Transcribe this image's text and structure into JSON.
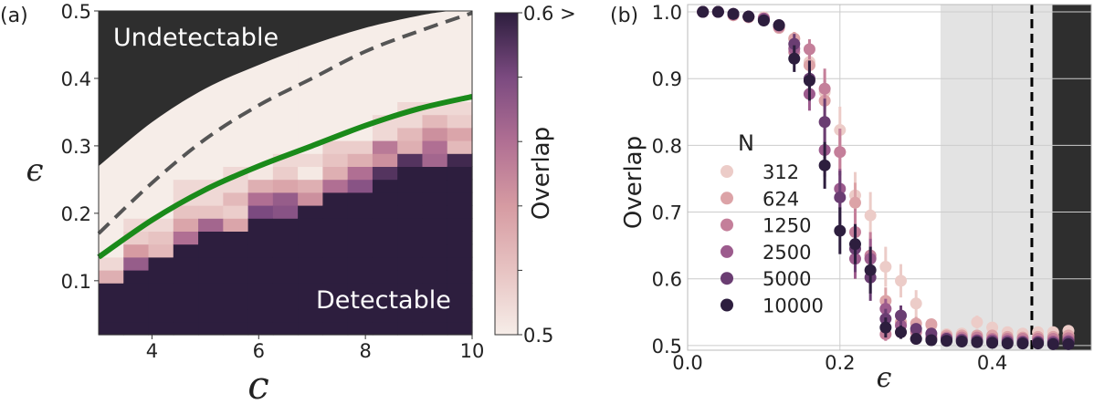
{
  "chart_data": [
    {
      "panel_label": "(a)",
      "type": "heatmap",
      "xlabel": "c",
      "ylabel": "ϵ",
      "xlim": [
        3,
        10
      ],
      "ylim": [
        0.02,
        0.5
      ],
      "x_ticks": [
        "4",
        "6",
        "8",
        "10"
      ],
      "x_tick_values": [
        4,
        6,
        8,
        10
      ],
      "y_ticks": [
        "0.1",
        "0.2",
        "0.3",
        "0.4",
        "0.5"
      ],
      "y_tick_values": [
        0.1,
        0.2,
        0.3,
        0.4,
        0.5
      ],
      "grid_columns": 15,
      "grid_rows": 25,
      "cells": [
        {
          "dark_rows": 4,
          "values": [
            0.53,
            0.51
          ]
        },
        {
          "dark_rows": 5,
          "values": [
            0.57,
            0.54,
            0.515,
            0.51
          ]
        },
        {
          "dark_rows": 6,
          "values": [
            0.525,
            0.52,
            0.51
          ]
        },
        {
          "dark_rows": 7,
          "values": [
            0.56,
            0.535,
            0.52,
            0.51,
            0.51
          ]
        },
        {
          "dark_rows": 8,
          "values": [
            0.565,
            0.52,
            0.51,
            0.51
          ]
        },
        {
          "dark_rows": 8,
          "values": [
            0.535,
            0.515,
            0.525,
            0.51,
            0.51
          ]
        },
        {
          "dark_rows": 9,
          "values": [
            0.58,
            0.56,
            0.53,
            0.503
          ]
        },
        {
          "dark_rows": 9,
          "values": [
            0.575,
            0.57,
            0.535,
            0.515,
            0.51
          ]
        },
        {
          "dark_rows": 10,
          "values": [
            0.545,
            0.53,
            0.502,
            0.51
          ]
        },
        {
          "dark_rows": 11,
          "values": [
            0.56,
            0.53,
            0.52,
            0.515
          ]
        },
        {
          "dark_rows": 11,
          "values": [
            0.575,
            0.56,
            0.53,
            0.515
          ]
        },
        {
          "dark_rows": 12,
          "values": [
            0.59,
            0.545,
            0.555,
            0.51,
            0.51
          ]
        },
        {
          "dark_rows": 13,
          "values": [
            0.59,
            0.53,
            0.525,
            0.51,
            0.51
          ]
        },
        {
          "dark_rows": 13,
          "values": [
            0.565,
            0.56,
            0.545,
            0.525,
            0.51
          ]
        },
        {
          "dark_rows": 13,
          "values": [
            0.595,
            0.525,
            0.535,
            0.515,
            0.51
          ]
        }
      ],
      "undetectable_boundary": {
        "c": [
          3,
          4,
          5,
          6,
          7,
          8,
          9,
          9.6,
          10
        ],
        "eps": [
          0.27,
          0.335,
          0.385,
          0.42,
          0.45,
          0.475,
          0.493,
          0.5,
          0.5
        ]
      },
      "dashed_curve": {
        "c": [
          3,
          4,
          5,
          6,
          7,
          8,
          9,
          10
        ],
        "eps": [
          0.17,
          0.245,
          0.31,
          0.36,
          0.4,
          0.44,
          0.47,
          0.497
        ]
      },
      "green_curve": {
        "c": [
          3,
          4,
          5,
          6,
          7,
          8,
          9,
          10
        ],
        "eps": [
          0.135,
          0.19,
          0.235,
          0.27,
          0.3,
          0.33,
          0.355,
          0.373
        ]
      },
      "region_labels": {
        "undetectable": "Undetectable",
        "detectable": "Detectable"
      },
      "colorbar": {
        "label": "Overlap",
        "min_label": "0.5",
        "max_label": "0.6 >",
        "range": [
          0.5,
          0.6
        ],
        "colors": [
          "#f6ede8",
          "#e7c3c2",
          "#d69ba2",
          "#b06f93",
          "#7b4a80",
          "#2d1e3e"
        ]
      },
      "colors": {
        "undetectable": "#2e2e2e",
        "detectable": "#2d1e3e",
        "green_curve": "#1a8a1a",
        "dashed_curve": "#555555"
      }
    },
    {
      "panel_label": "(b)",
      "type": "scatter",
      "xlabel": "ϵ",
      "ylabel": "Overlap",
      "xlim": [
        0,
        0.53
      ],
      "ylim": [
        0.493,
        1.011
      ],
      "grid": true,
      "x_ticks": [
        "0.0",
        "0.2",
        "0.4"
      ],
      "x_tick_values": [
        0.0,
        0.2,
        0.4
      ],
      "y_ticks": [
        "0.5",
        "0.6",
        "0.7",
        "0.8",
        "0.9",
        "1.0"
      ],
      "y_tick_values": [
        0.5,
        0.6,
        0.7,
        0.8,
        0.9,
        1.0
      ],
      "shaded_region": [
        0.332,
        0.479
      ],
      "dark_region": [
        0.479,
        0.53
      ],
      "dashed_line_x": 0.452,
      "legend": {
        "title": "N",
        "placement": "center-left"
      },
      "x": [
        0.02,
        0.04,
        0.06,
        0.08,
        0.1,
        0.12,
        0.14,
        0.16,
        0.18,
        0.2,
        0.22,
        0.24,
        0.26,
        0.28,
        0.3,
        0.32,
        0.34,
        0.36,
        0.38,
        0.4,
        0.42,
        0.44,
        0.46,
        0.48,
        0.5
      ],
      "series": [
        {
          "name": "312",
          "color": "#ecccc8",
          "values": [
            1,
            1,
            0.995,
            0.992,
            0.992,
            0.978,
            0.96,
            0.925,
            0.88,
            0.823,
            0.725,
            0.695,
            0.618,
            0.597,
            0.563,
            0.53,
            0.517,
            0.518,
            0.535,
            0.527,
            0.52,
            0.518,
            0.52,
            0.52,
            0.522
          ],
          "err": [
            0,
            0,
            0,
            0,
            0.003,
            0.005,
            0.01,
            0.02,
            0.03,
            0.035,
            0.035,
            0.035,
            0.03,
            0.025,
            0.02,
            0.01,
            0.005,
            0.005,
            0.01,
            0.008,
            0.006,
            0.005,
            0.005,
            0.005,
            0.004
          ]
        },
        {
          "name": "624",
          "color": "#dca3a7",
          "values": [
            1,
            1,
            0.995,
            0.992,
            0.99,
            0.976,
            0.96,
            0.92,
            0.867,
            0.79,
            0.714,
            0.632,
            0.567,
            0.535,
            0.533,
            0.532,
            0.515,
            0.515,
            0.515,
            0.515,
            0.513,
            0.512,
            0.513,
            0.513,
            0.515
          ],
          "err": [
            0,
            0,
            0,
            0,
            0.003,
            0.005,
            0.01,
            0.02,
            0.03,
            0.035,
            0.03,
            0.03,
            0.02,
            0.015,
            0.01,
            0.008,
            0.005,
            0.004,
            0.004,
            0.004,
            0.004,
            0.003,
            0.003,
            0.003,
            0.003
          ]
        },
        {
          "name": "1250",
          "color": "#c47f9a",
          "values": [
            1,
            1,
            0.996,
            0.993,
            0.99,
            0.978,
            0.94,
            0.944,
            0.885,
            0.79,
            0.67,
            0.635,
            0.517,
            0.52,
            0.52,
            0.513,
            0.512,
            0.512,
            0.512,
            0.51,
            0.51,
            0.51,
            0.51,
            0.51,
            0.511
          ],
          "err": [
            0,
            0,
            0,
            0,
            0.003,
            0.005,
            0.01,
            0.015,
            0.03,
            0.035,
            0.035,
            0.035,
            0.01,
            0.01,
            0.008,
            0.005,
            0.004,
            0.003,
            0.003,
            0.003,
            0.003,
            0.003,
            0.003,
            0.003,
            0.003
          ]
        },
        {
          "name": "2500",
          "color": "#9c5b8d",
          "values": [
            1,
            1,
            0.997,
            0.993,
            0.99,
            0.98,
            0.945,
            0.877,
            0.793,
            0.735,
            0.63,
            0.63,
            0.555,
            0.53,
            0.51,
            0.51,
            0.51,
            0.509,
            0.508,
            0.508,
            0.507,
            0.506,
            0.506,
            0.506,
            0.507
          ],
          "err": [
            0,
            0,
            0,
            0,
            0.003,
            0.005,
            0.015,
            0.025,
            0.04,
            0.03,
            0.03,
            0.03,
            0.015,
            0.01,
            0.005,
            0.004,
            0.003,
            0.003,
            0.003,
            0.003,
            0.003,
            0.003,
            0.003,
            0.003,
            0.003
          ]
        },
        {
          "name": "5000",
          "color": "#6a3d72",
          "values": [
            1,
            1,
            0.997,
            0.993,
            0.988,
            0.98,
            0.952,
            0.9,
            0.835,
            0.722,
            0.645,
            0.602,
            0.54,
            0.545,
            0.525,
            0.518,
            0.51,
            0.508,
            0.507,
            0.506,
            0.505,
            0.505,
            0.505,
            0.504,
            0.505
          ],
          "err": [
            0,
            0,
            0,
            0,
            0.003,
            0.005,
            0.015,
            0.025,
            0.035,
            0.04,
            0.035,
            0.035,
            0.015,
            0.015,
            0.008,
            0.005,
            0.003,
            0.003,
            0.003,
            0.003,
            0.003,
            0.003,
            0.003,
            0.003,
            0.003
          ]
        },
        {
          "name": "10000",
          "color": "#2d1e3e",
          "values": [
            1,
            1,
            0.997,
            0.993,
            0.987,
            0.98,
            0.93,
            0.897,
            0.77,
            0.672,
            0.652,
            0.613,
            0.527,
            0.52,
            0.51,
            0.508,
            0.507,
            0.506,
            0.505,
            0.504,
            0.503,
            0.503,
            0.503,
            0.502,
            0.502
          ],
          "err": [
            0,
            0,
            0,
            0,
            0.003,
            0.005,
            0.02,
            0.03,
            0.035,
            0.035,
            0.03,
            0.035,
            0.015,
            0.01,
            0.005,
            0.004,
            0.003,
            0.003,
            0.003,
            0.003,
            0.003,
            0.003,
            0.003,
            0.003,
            0.003
          ]
        }
      ],
      "colors": {
        "shaded_region": "#e3e3e3",
        "dark_region": "#2e2e2e",
        "grid": "#cccccc"
      }
    }
  ]
}
